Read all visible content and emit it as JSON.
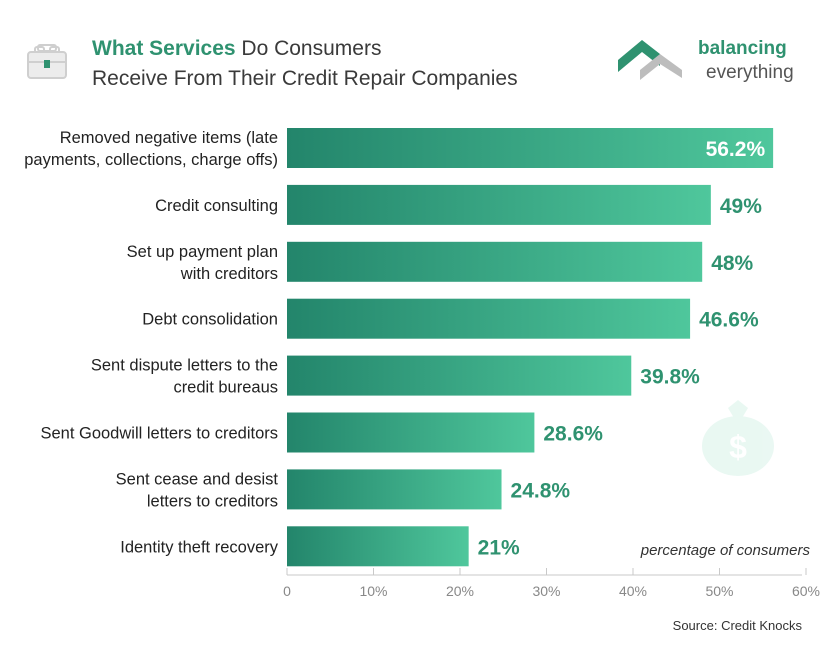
{
  "header": {
    "title_bold": "What Services",
    "title_rest": " Do Consumers",
    "title_line2": "Receive From Their Credit Repair Companies"
  },
  "logo": {
    "line1": "balancing",
    "line2": "everything"
  },
  "source": "Source: Credit Knocks",
  "colors": {
    "bar_start": "#23856b",
    "bar_end": "#4fc79c",
    "value_text": "#2f9270"
  },
  "chart_data": {
    "type": "bar",
    "orientation": "horizontal",
    "categories": [
      [
        "Removed negative items (late",
        "payments, collections, charge offs)"
      ],
      [
        "Credit consulting"
      ],
      [
        "Set up payment plan",
        "with creditors"
      ],
      [
        "Debt consolidation"
      ],
      [
        "Sent dispute letters to the",
        "credit bureaus"
      ],
      [
        "Sent Goodwill letters to creditors"
      ],
      [
        "Sent cease and desist",
        "letters to creditors"
      ],
      [
        "Identity theft recovery"
      ]
    ],
    "values": [
      56.2,
      49,
      48,
      46.6,
      39.8,
      28.6,
      24.8,
      21
    ],
    "value_labels": [
      "56.2%",
      "49%",
      "48%",
      "46.6%",
      "39.8%",
      "28.6%",
      "24.8%",
      "21%"
    ],
    "xlim": [
      0,
      60
    ],
    "xticks": [
      "0",
      "10%",
      "20%",
      "30%",
      "40%",
      "50%",
      "60%"
    ],
    "xlabel": "percentage of consumers",
    "grid": false
  }
}
